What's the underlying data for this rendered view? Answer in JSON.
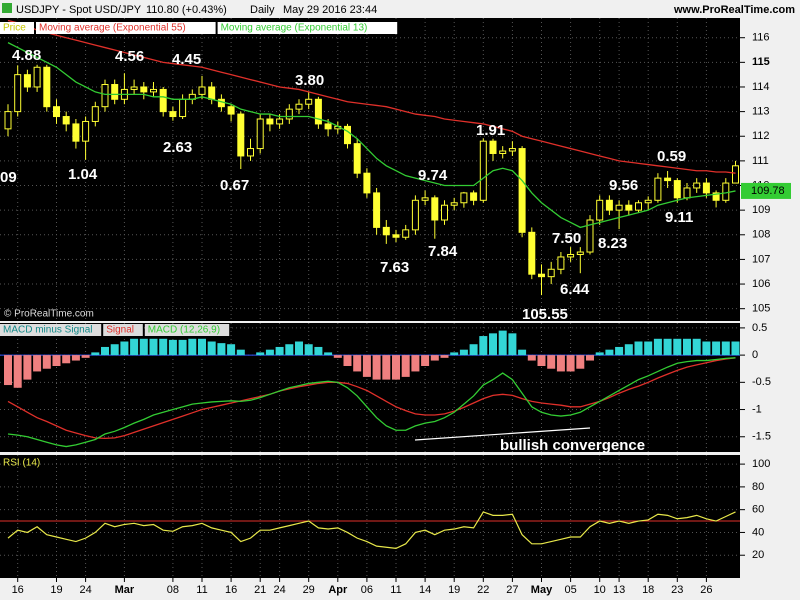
{
  "header": {
    "title": "USDJPY - Spot USD/JPY",
    "quote": "110.80 (+0.43%)",
    "interval": "Daily",
    "date": "May 29 2016 23:44",
    "source": "www.ProRealTime.com",
    "copyright": "© ProRealTime.com"
  },
  "chart_data": [
    {
      "type": "candlestick",
      "grid": true,
      "categories": [
        null,
        "16",
        null,
        null,
        null,
        "19",
        null,
        null,
        "24",
        null,
        null,
        null,
        "Mar",
        null,
        null,
        null,
        null,
        "08",
        null,
        null,
        "11",
        null,
        null,
        "16",
        null,
        null,
        "21",
        null,
        "24",
        null,
        null,
        "29",
        null,
        null,
        "Apr",
        null,
        null,
        "06",
        null,
        null,
        "11",
        null,
        null,
        "14",
        null,
        null,
        "19",
        null,
        null,
        "22",
        null,
        null,
        "27",
        null,
        null,
        "May",
        null,
        null,
        "05",
        null,
        null,
        "10",
        null,
        "13",
        null,
        null,
        "18",
        null,
        null,
        "23",
        null,
        null,
        "26",
        null,
        null,
        null
      ],
      "candles": {
        "name": "Price",
        "color": "#ffff33",
        "open": [
          112.3,
          113.0,
          114.5,
          114.0,
          114.8,
          113.2,
          112.8,
          112.5,
          111.8,
          112.6,
          113.2,
          114.1,
          113.5,
          113.9,
          114.0,
          113.8,
          113.9,
          113.0,
          112.8,
          113.5,
          113.7,
          114.0,
          113.5,
          113.2,
          112.9,
          111.2,
          111.5,
          112.7,
          112.5,
          112.7,
          113.1,
          113.3,
          113.5,
          112.5,
          112.3,
          112.4,
          111.7,
          110.5,
          109.7,
          108.3,
          108.0,
          107.9,
          108.2,
          109.4,
          109.5,
          108.6,
          109.2,
          109.3,
          109.7,
          109.4,
          111.8,
          111.3,
          111.4,
          111.5,
          108.1,
          106.4,
          106.3,
          106.6,
          107.1,
          107.2,
          107.3,
          108.6,
          109.4,
          109.0,
          109.2,
          109.0,
          109.3,
          109.4,
          110.3,
          110.2,
          109.5,
          109.9,
          110.1,
          109.7,
          109.4,
          110.1
        ],
        "high": [
          113.3,
          114.88,
          114.7,
          114.9,
          114.9,
          113.5,
          113.0,
          112.7,
          112.8,
          113.4,
          114.3,
          114.3,
          114.56,
          114.3,
          114.2,
          114.2,
          114.0,
          113.2,
          113.7,
          113.9,
          114.45,
          114.2,
          113.7,
          113.3,
          113.0,
          111.9,
          112.9,
          112.9,
          112.9,
          113.3,
          113.5,
          113.8,
          113.6,
          112.7,
          112.6,
          112.5,
          111.9,
          110.7,
          109.9,
          108.6,
          108.2,
          108.4,
          109.6,
          109.8,
          109.6,
          109.4,
          109.5,
          109.74,
          109.8,
          111.91,
          111.9,
          111.6,
          111.8,
          111.6,
          108.3,
          106.8,
          106.9,
          107.3,
          107.5,
          107.5,
          108.8,
          109.6,
          109.6,
          109.4,
          109.4,
          109.4,
          109.56,
          110.5,
          110.59,
          110.3,
          110.1,
          110.3,
          110.3,
          109.8,
          110.3,
          111.0
        ],
        "low": [
          112.0,
          112.8,
          113.8,
          113.8,
          113.0,
          112.5,
          112.2,
          111.5,
          111.04,
          112.4,
          113.0,
          113.3,
          113.3,
          113.7,
          113.5,
          113.6,
          112.8,
          112.63,
          112.7,
          113.3,
          113.5,
          113.3,
          113.0,
          112.6,
          110.67,
          111.0,
          111.3,
          112.2,
          112.3,
          112.5,
          112.9,
          113.1,
          112.3,
          112.0,
          112.1,
          111.5,
          110.3,
          109.5,
          108.0,
          107.63,
          107.7,
          107.8,
          108.0,
          109.2,
          107.84,
          108.4,
          109.0,
          109.1,
          109.2,
          109.3,
          111.0,
          111.1,
          111.2,
          107.9,
          106.2,
          105.55,
          106.0,
          106.4,
          106.9,
          106.44,
          107.2,
          108.4,
          108.8,
          108.23,
          108.8,
          108.9,
          109.0,
          109.3,
          109.9,
          109.3,
          109.4,
          109.7,
          109.5,
          109.11,
          109.3,
          110.1
        ],
        "close": [
          113.0,
          114.5,
          114.0,
          114.8,
          113.2,
          112.8,
          112.5,
          111.8,
          112.6,
          113.2,
          114.1,
          113.5,
          113.9,
          114.0,
          113.8,
          113.9,
          113.0,
          112.8,
          113.5,
          113.7,
          114.0,
          113.5,
          113.2,
          112.9,
          111.2,
          111.5,
          112.7,
          112.5,
          112.7,
          113.1,
          113.3,
          113.5,
          112.5,
          112.3,
          112.4,
          111.7,
          110.5,
          109.7,
          108.3,
          108.0,
          107.9,
          108.2,
          109.4,
          109.5,
          108.6,
          109.2,
          109.3,
          109.7,
          109.4,
          111.8,
          111.3,
          111.4,
          111.5,
          108.1,
          106.4,
          106.3,
          106.6,
          107.1,
          107.2,
          107.3,
          108.6,
          109.4,
          109.0,
          109.2,
          109.0,
          109.3,
          109.4,
          110.3,
          110.2,
          109.5,
          109.9,
          110.1,
          109.7,
          109.4,
          110.1,
          110.8
        ]
      },
      "series": [
        {
          "name": "Moving average (Exponential 55)",
          "color": "#e0302a",
          "values": [
            116.7,
            116.6,
            116.5,
            116.3,
            116.2,
            116.1,
            116.0,
            115.9,
            115.8,
            115.7,
            115.6,
            115.5,
            115.4,
            115.3,
            115.2,
            115.1,
            115.0,
            114.95,
            114.9,
            114.85,
            114.8,
            114.7,
            114.6,
            114.5,
            114.4,
            114.3,
            114.2,
            114.1,
            114.0,
            113.95,
            113.9,
            113.8,
            113.7,
            113.6,
            113.5,
            113.4,
            113.35,
            113.3,
            113.25,
            113.2,
            113.1,
            113.0,
            112.9,
            112.85,
            112.8,
            112.7,
            112.65,
            112.6,
            112.55,
            112.5,
            112.4,
            112.3,
            112.2,
            112.0,
            111.9,
            111.8,
            111.7,
            111.6,
            111.5,
            111.4,
            111.3,
            111.2,
            111.1,
            111.0,
            110.95,
            110.9,
            110.85,
            110.8,
            110.75,
            110.7,
            110.65,
            110.6,
            110.6,
            110.55,
            110.55,
            110.5
          ]
        },
        {
          "name": "Moving average (Exponential 13)",
          "color": "#33cc33",
          "values": [
            115.8,
            115.6,
            115.4,
            115.2,
            115.0,
            114.8,
            114.5,
            114.2,
            114.0,
            113.8,
            113.7,
            113.7,
            113.7,
            113.7,
            113.7,
            113.6,
            113.6,
            113.5,
            113.5,
            113.5,
            113.6,
            113.5,
            113.4,
            113.3,
            113.1,
            113.0,
            112.9,
            112.9,
            112.8,
            112.8,
            112.8,
            112.8,
            112.7,
            112.6,
            112.4,
            112.2,
            111.9,
            111.5,
            111.1,
            110.8,
            110.6,
            110.4,
            110.3,
            110.2,
            110.1,
            110.0,
            110.0,
            110.0,
            110.0,
            110.3,
            110.6,
            110.7,
            110.6,
            110.2,
            109.7,
            109.3,
            109.0,
            108.7,
            108.5,
            108.3,
            108.4,
            108.5,
            108.6,
            108.7,
            108.8,
            108.9,
            109.0,
            109.2,
            109.3,
            109.4,
            109.5,
            109.55,
            109.6,
            109.65,
            109.7,
            109.78
          ]
        }
      ],
      "ylim": [
        104.5,
        116.8
      ],
      "yticks": [
        105,
        106,
        107,
        108,
        109,
        110,
        111,
        112,
        113,
        114,
        115,
        116
      ],
      "annotations": [
        "09",
        "4.88",
        "4.56",
        "4.45",
        "3.80",
        "1.91",
        "0.59",
        "1.04",
        "2.63",
        "0.67",
        "9.74",
        "9.56",
        "7.50",
        "8.23",
        "9.11",
        "7.63",
        "7.84",
        "6.44",
        "105.55"
      ]
    },
    {
      "type": "macd",
      "grid": true,
      "series": [
        {
          "name": "MACD minus Signal",
          "type": "bar",
          "color": "#33d6d6",
          "negative_color": "#f08080",
          "values": [
            -0.55,
            -0.6,
            -0.45,
            -0.3,
            -0.25,
            -0.2,
            -0.15,
            -0.1,
            -0.05,
            0.05,
            0.15,
            0.2,
            0.25,
            0.3,
            0.3,
            0.3,
            0.3,
            0.28,
            0.28,
            0.3,
            0.3,
            0.25,
            0.22,
            0.2,
            0.1,
            0.0,
            0.05,
            0.1,
            0.15,
            0.2,
            0.25,
            0.2,
            0.15,
            0.05,
            -0.05,
            -0.2,
            -0.3,
            -0.4,
            -0.45,
            -0.45,
            -0.45,
            -0.4,
            -0.3,
            -0.2,
            -0.1,
            -0.05,
            0.05,
            0.1,
            0.2,
            0.35,
            0.4,
            0.45,
            0.4,
            0.1,
            -0.1,
            -0.2,
            -0.25,
            -0.3,
            -0.3,
            -0.25,
            -0.1,
            0.05,
            0.1,
            0.15,
            0.2,
            0.25,
            0.25,
            0.3,
            0.3,
            0.3,
            0.3,
            0.3,
            0.25,
            0.25,
            0.25,
            0.25
          ]
        },
        {
          "name": "Signal",
          "type": "line",
          "color": "#e0302a",
          "values": [
            -0.85,
            -0.95,
            -1.05,
            -1.15,
            -1.22,
            -1.3,
            -1.38,
            -1.43,
            -1.48,
            -1.52,
            -1.53,
            -1.52,
            -1.48,
            -1.42,
            -1.36,
            -1.3,
            -1.24,
            -1.18,
            -1.12,
            -1.06,
            -1.0,
            -0.96,
            -0.92,
            -0.88,
            -0.84,
            -0.8,
            -0.76,
            -0.72,
            -0.66,
            -0.62,
            -0.58,
            -0.55,
            -0.52,
            -0.5,
            -0.5,
            -0.52,
            -0.58,
            -0.65,
            -0.75,
            -0.85,
            -0.95,
            -1.02,
            -1.08,
            -1.1,
            -1.1,
            -1.08,
            -1.03,
            -0.96,
            -0.88,
            -0.8,
            -0.74,
            -0.72,
            -0.74,
            -0.8,
            -0.85,
            -0.88,
            -0.9,
            -0.92,
            -0.95,
            -0.95,
            -0.9,
            -0.85,
            -0.78,
            -0.7,
            -0.63,
            -0.57,
            -0.5,
            -0.42,
            -0.35,
            -0.28,
            -0.22,
            -0.18,
            -0.14,
            -0.1,
            -0.07,
            -0.05
          ]
        },
        {
          "name": "MACD (12,26,9)",
          "type": "line",
          "color": "#33cc33",
          "values": [
            -1.45,
            -1.47,
            -1.5,
            -1.55,
            -1.6,
            -1.65,
            -1.68,
            -1.65,
            -1.6,
            -1.55,
            -1.45,
            -1.4,
            -1.33,
            -1.25,
            -1.18,
            -1.1,
            -1.05,
            -1.0,
            -0.95,
            -0.9,
            -0.88,
            -0.86,
            -0.85,
            -0.84,
            -0.85,
            -0.83,
            -0.78,
            -0.72,
            -0.66,
            -0.6,
            -0.56,
            -0.52,
            -0.5,
            -0.48,
            -0.5,
            -0.6,
            -0.75,
            -0.95,
            -1.15,
            -1.3,
            -1.38,
            -1.38,
            -1.3,
            -1.25,
            -1.22,
            -1.15,
            -1.05,
            -0.9,
            -0.75,
            -0.55,
            -0.45,
            -0.33,
            -0.45,
            -0.7,
            -0.95,
            -1.05,
            -1.1,
            -1.12,
            -1.1,
            -1.05,
            -0.95,
            -0.85,
            -0.75,
            -0.65,
            -0.55,
            -0.45,
            -0.38,
            -0.3,
            -0.22,
            -0.15,
            -0.12,
            -0.1,
            -0.1,
            -0.08,
            -0.06,
            -0.05
          ]
        }
      ],
      "ylim": [
        -1.78,
        0.59
      ],
      "yticks": [
        0.5,
        0,
        -0.5,
        -1,
        -1.5
      ],
      "annotation": "bullish convergence"
    },
    {
      "type": "line",
      "grid": true,
      "series": [
        {
          "name": "RSI (14)",
          "color": "#e8e84a",
          "values": [
            35,
            42,
            40,
            45,
            38,
            36,
            34,
            32,
            35,
            40,
            48,
            45,
            47,
            48,
            46,
            47,
            42,
            41,
            45,
            46,
            48,
            44,
            42,
            40,
            32,
            35,
            42,
            42,
            44,
            46,
            48,
            50,
            44,
            43,
            44,
            40,
            35,
            32,
            28,
            27,
            26,
            30,
            40,
            42,
            38,
            42,
            43,
            45,
            44,
            58,
            55,
            55,
            56,
            38,
            30,
            30,
            32,
            34,
            36,
            36,
            45,
            50,
            48,
            50,
            48,
            50,
            51,
            56,
            55,
            52,
            53,
            55,
            52,
            50,
            54,
            58
          ]
        }
      ],
      "reference": 50,
      "reference_color": "#e0302a",
      "ylim": [
        0,
        108
      ],
      "yticks": [
        20,
        40,
        60,
        80,
        100
      ]
    }
  ]
}
